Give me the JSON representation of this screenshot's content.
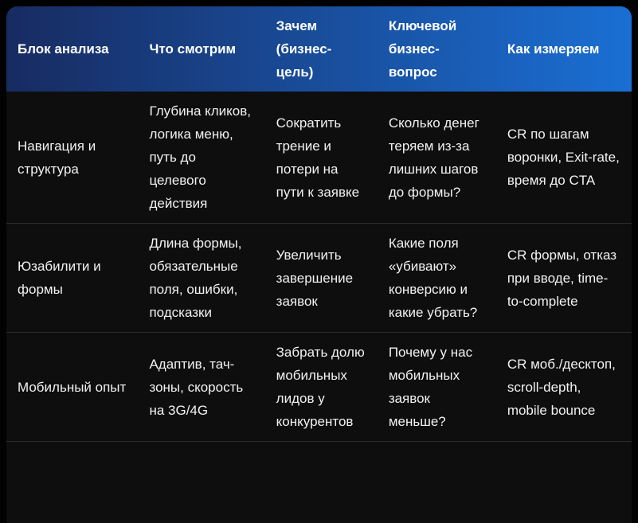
{
  "table": {
    "columns": [
      {
        "label": "Блок анализа"
      },
      {
        "label": "Что смотрим"
      },
      {
        "label": "Зачем (бизнес-цель)"
      },
      {
        "label": "Ключевой бизнес-вопрос"
      },
      {
        "label": "Как измеряем"
      }
    ],
    "rows": [
      [
        "Навигация и структура",
        "Глубина кликов, логика меню, путь до целевого действия",
        "Сократить трение и потери на пути к заявке",
        "Сколько денег теряем из-за лишних шагов до формы?",
        "CR по шагам воронки, Exit-rate, время до CTA"
      ],
      [
        "Юзабилити и формы",
        "Длина формы, обязательные поля, ошибки, подсказки",
        "Увеличить завершение заявок",
        "Какие поля «убивают» конверсию и какие убрать?",
        "CR формы, отказ при вводе, time-to-complete"
      ],
      [
        "Мобильный опыт",
        "Адаптив, тач-зоны, скорость на 3G/4G",
        "Забрать долю мобильных лидов у конкурентов",
        "Почему у нас мобильных заявок меньше?",
        "CR моб./десктоп, scroll-depth, mobile bounce"
      ]
    ]
  },
  "colors": {
    "header_gradient_from": "#182b61",
    "header_gradient_to": "#1a6fd4",
    "page_background": "#020202",
    "row_background": "#0e0e0e",
    "divider": "#2d2d2d",
    "header_text": "#ffffff",
    "body_text": "#f2f2f2"
  }
}
